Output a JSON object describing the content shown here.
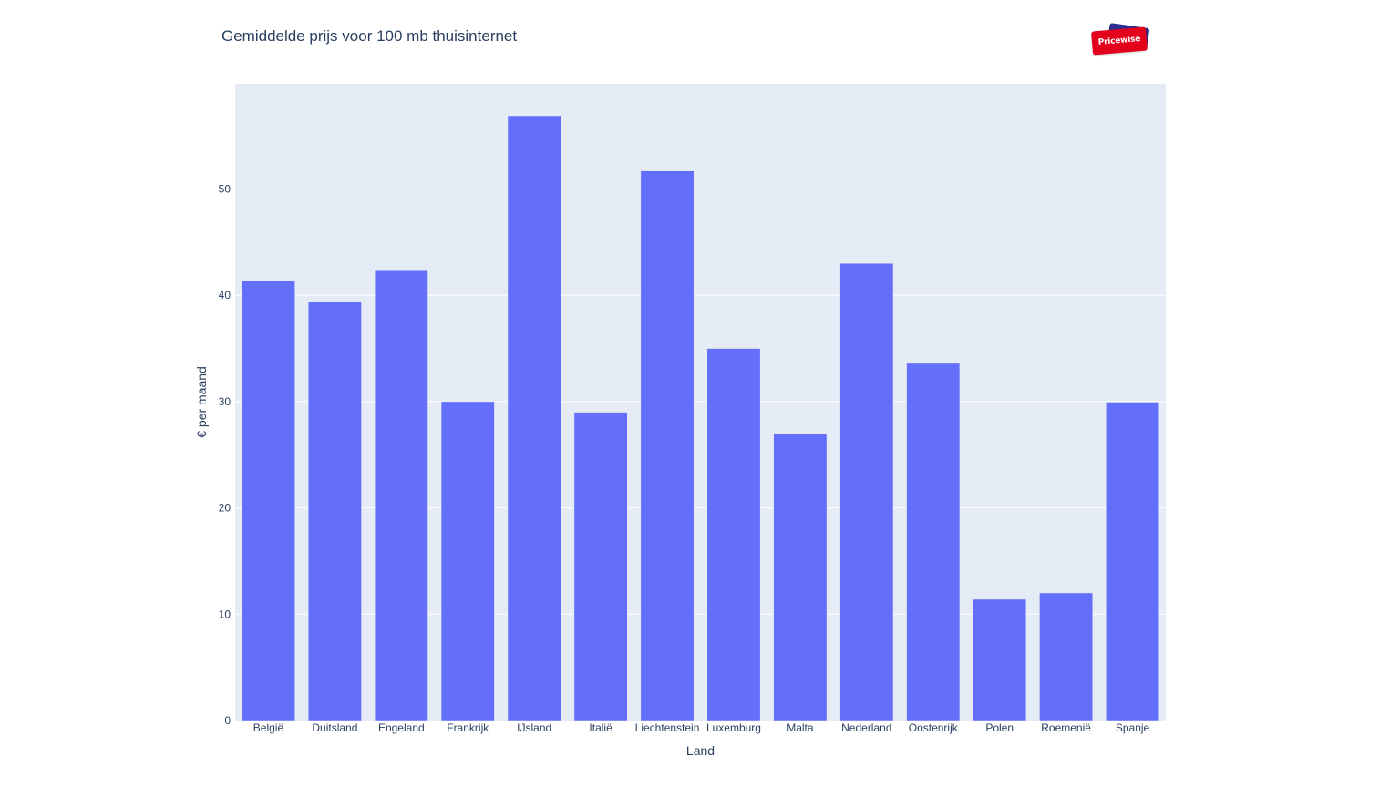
{
  "chart_data": {
    "type": "bar",
    "title": "Gemiddelde prijs voor 100 mb thuisinternet",
    "xlabel": "Land",
    "ylabel": "€ per maand",
    "categories": [
      "België",
      "Duitsland",
      "Engeland",
      "Frankrijk",
      "IJsland",
      "Italië",
      "Liechtenstein",
      "Luxemburg",
      "Malta",
      "Nederland",
      "Oostenrijk",
      "Polen",
      "Roemenië",
      "Spanje"
    ],
    "values": [
      41.4,
      39.4,
      42.4,
      30.0,
      56.9,
      29.0,
      51.7,
      35.0,
      27.0,
      43.0,
      33.6,
      11.4,
      12.0,
      29.95
    ],
    "ylim": [
      0,
      59.9
    ],
    "yticks": [
      0,
      10,
      20,
      30,
      40,
      50
    ],
    "grid": true,
    "colors": {
      "bar": "#636efa",
      "plot_background": "#e5ecf6",
      "grid": "#ffffff",
      "text": "#2a3f5f"
    }
  },
  "logo": {
    "text": "Pricewise"
  }
}
